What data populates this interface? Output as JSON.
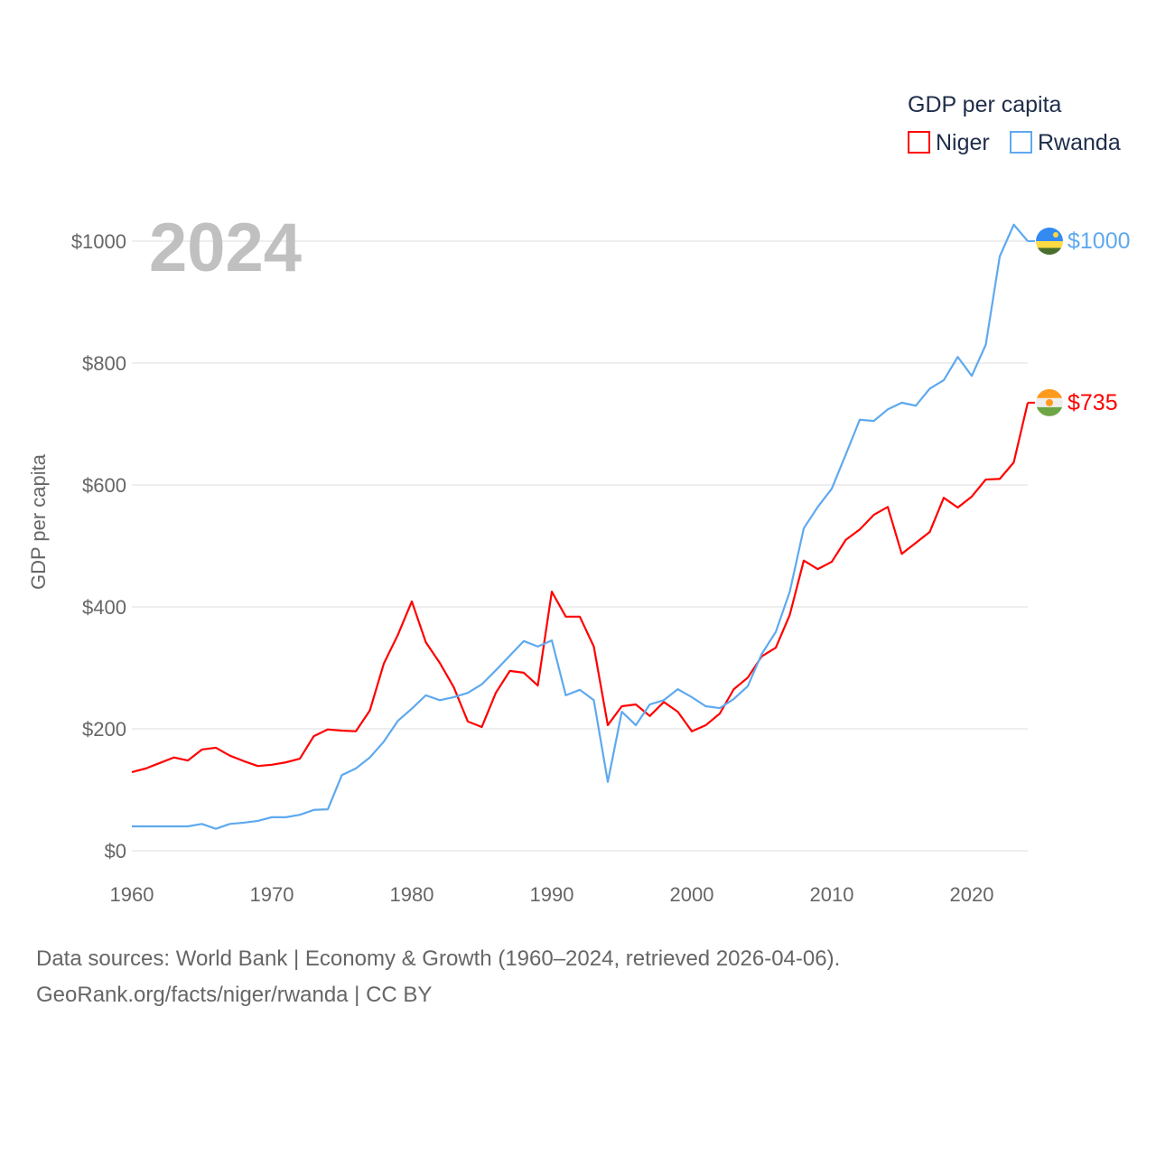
{
  "chart_data": {
    "type": "line",
    "year_label": "2024",
    "ylabel": "GDP per capita",
    "xlabel": "",
    "legend_title": "GDP per capita",
    "legend_position": "top-right",
    "xlim": [
      1960,
      2024
    ],
    "ylim": [
      0,
      1000
    ],
    "x_ticks": [
      "1960",
      "1970",
      "1980",
      "1990",
      "2000",
      "2010",
      "2020"
    ],
    "y_ticks": [
      {
        "value": 0,
        "label": "$0"
      },
      {
        "value": 200,
        "label": "$200"
      },
      {
        "value": 400,
        "label": "$400"
      },
      {
        "value": 600,
        "label": "$600"
      },
      {
        "value": 800,
        "label": "$800"
      },
      {
        "value": 1000,
        "label": "$1000"
      }
    ],
    "grid": true,
    "x_start": 1960,
    "series": [
      {
        "name": "Niger",
        "color": "#ff0000",
        "end_label": "$735",
        "flag": "niger-flag",
        "values": [
          129,
          135,
          144,
          153,
          148,
          166,
          169,
          156,
          147,
          139,
          141,
          145,
          151,
          188,
          199,
          197,
          196,
          230,
          307,
          354,
          409,
          342,
          308,
          268,
          212,
          203,
          259,
          295,
          292,
          271,
          425,
          384,
          384,
          335,
          206,
          237,
          240,
          221,
          244,
          228,
          196,
          206,
          225,
          265,
          284,
          319,
          333,
          387,
          476,
          462,
          474,
          510,
          527,
          551,
          564,
          487,
          505,
          523,
          579,
          563,
          581,
          609,
          610,
          637,
          735
        ]
      },
      {
        "name": "Rwanda",
        "color": "#5ea9ef",
        "end_label": "$1000",
        "flag": "rwanda-flag",
        "values": [
          40,
          40,
          40,
          40,
          40,
          44,
          36,
          44,
          46,
          49,
          55,
          55,
          59,
          67,
          68,
          124,
          135,
          153,
          179,
          213,
          233,
          255,
          247,
          252,
          259,
          273,
          296,
          320,
          344,
          335,
          345,
          255,
          264,
          247,
          113,
          228,
          206,
          240,
          247,
          265,
          252,
          237,
          234,
          249,
          270,
          323,
          359,
          425,
          529,
          564,
          594,
          650,
          707,
          705,
          724,
          735,
          730,
          758,
          772,
          810,
          779,
          830,
          975,
          1027,
          1000
        ]
      }
    ]
  },
  "footer": {
    "line1": "Data sources: World Bank | Economy & Growth (1960–2024, retrieved 2026-04-06).",
    "line2": "GeoRank.org/facts/niger/rwanda | CC BY"
  }
}
